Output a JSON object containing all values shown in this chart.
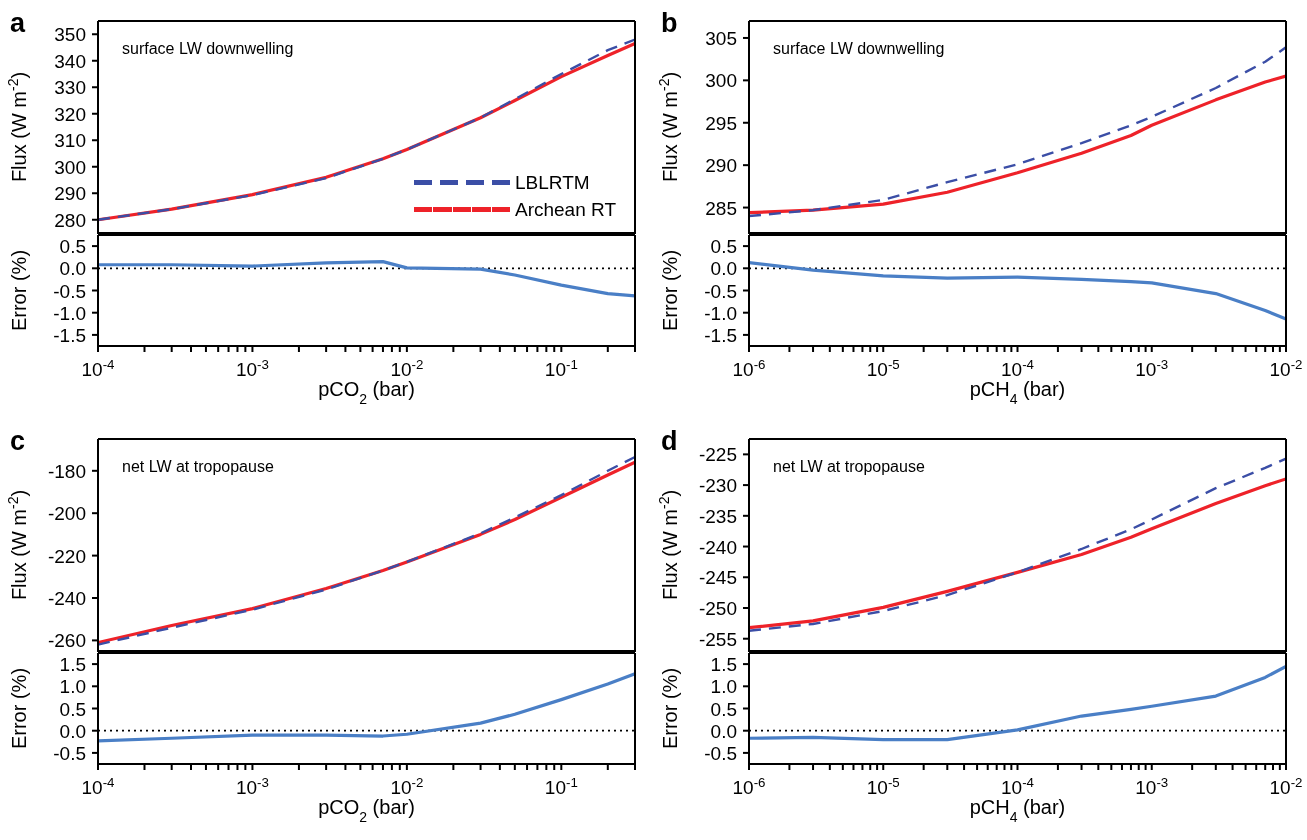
{
  "chart_data": [
    {
      "type": "line",
      "title": "a",
      "annotations": [
        "surface LW downwelling"
      ],
      "ylabel": "Flux (W m$^{-2}$)",
      "legend": "bottom right",
      "tick_labels": "y",
      "x": [
        0.0001,
        0.0003,
        0.001,
        0.003,
        0.007,
        0.01,
        0.03,
        0.05,
        0.1,
        0.2,
        0.3
      ],
      "series": [
        {
          "name": "LBLRTM",
          "color": "#3b4ea6",
          "line_style": "dashed",
          "values": [
            280,
            284,
            289.3,
            295.7,
            303,
            306.5,
            318.5,
            325.5,
            335,
            344,
            348
          ]
        },
        {
          "name": "Archean RT",
          "color": "#ee2229",
          "line_style": "solid",
          "values": [
            280,
            284,
            289.5,
            296,
            303,
            306.5,
            318.5,
            325,
            334,
            342,
            346.5
          ]
        }
      ],
      "xlim": [
        0.0001,
        0.3
      ],
      "xticks": [
        {
          "value": 0.0001,
          "label": null
        },
        {
          "value": 0.0002,
          "label": null
        },
        {
          "value": 0.0003,
          "label": null
        },
        {
          "value": 0.0004,
          "label": null
        },
        {
          "value": 0.0005,
          "label": null
        },
        {
          "value": 0.0006,
          "label": null
        },
        {
          "value": 0.0007,
          "label": null
        },
        {
          "value": 0.0008,
          "label": null
        },
        {
          "value": 0.0009,
          "label": null
        },
        {
          "value": 0.001,
          "label": null
        },
        {
          "value": 0.002,
          "label": null
        },
        {
          "value": 0.003,
          "label": null
        },
        {
          "value": 0.004,
          "label": null
        },
        {
          "value": 0.005,
          "label": null
        },
        {
          "value": 0.006,
          "label": null
        },
        {
          "value": 0.007,
          "label": null
        },
        {
          "value": 0.008,
          "label": null
        },
        {
          "value": 0.009,
          "label": null
        },
        {
          "value": 0.01,
          "label": null
        },
        {
          "value": 0.02,
          "label": null
        },
        {
          "value": 0.03,
          "label": null
        },
        {
          "value": 0.04,
          "label": null
        },
        {
          "value": 0.05,
          "label": null
        },
        {
          "value": 0.06,
          "label": null
        },
        {
          "value": 0.07,
          "label": null
        },
        {
          "value": 0.08,
          "label": null
        },
        {
          "value": 0.09,
          "label": null
        },
        {
          "value": 0.1,
          "label": null
        },
        {
          "value": 0.2,
          "label": null
        },
        {
          "value": 0.3,
          "label": null
        }
      ],
      "log": "x",
      "ylim": [
        275,
        355
      ],
      "yticks": [
        280,
        290,
        300,
        310,
        320,
        330,
        340,
        350
      ]
    },
    {
      "type": "line",
      "ylabel": "Error (%)",
      "xlabel": "pCO$_{2}$ (bar)",
      "x": [
        0.0001,
        0.0003,
        0.001,
        0.003,
        0.007,
        0.01,
        0.03,
        0.05,
        0.1,
        0.2,
        0.3
      ],
      "series": [
        {
          "color": "#4a7fc6",
          "values": [
            0.08,
            0.08,
            0.05,
            0.12,
            0.15,
            0.01,
            -0.02,
            -0.15,
            -0.38,
            -0.57,
            -0.62
          ]
        }
      ],
      "ref_lines": [
        {
          "axis": "y",
          "value": 0,
          "color": "#000000",
          "line_style": "dotted"
        }
      ],
      "xlim": [
        0.0001,
        0.3
      ],
      "xticks": [
        {
          "value": 0.0001,
          "label": "10$^{-4}$"
        },
        {
          "value": 0.0002,
          "label": null
        },
        {
          "value": 0.0003,
          "label": null
        },
        {
          "value": 0.0004,
          "label": null
        },
        {
          "value": 0.0005,
          "label": null
        },
        {
          "value": 0.0006,
          "label": null
        },
        {
          "value": 0.0007,
          "label": null
        },
        {
          "value": 0.0008,
          "label": null
        },
        {
          "value": 0.0009,
          "label": null
        },
        {
          "value": 0.001,
          "label": "10$^{-3}$"
        },
        {
          "value": 0.002,
          "label": null
        },
        {
          "value": 0.003,
          "label": null
        },
        {
          "value": 0.004,
          "label": null
        },
        {
          "value": 0.005,
          "label": null
        },
        {
          "value": 0.006,
          "label": null
        },
        {
          "value": 0.007,
          "label": null
        },
        {
          "value": 0.008,
          "label": null
        },
        {
          "value": 0.009,
          "label": null
        },
        {
          "value": 0.01,
          "label": "10$^{-2}$"
        },
        {
          "value": 0.02,
          "label": null
        },
        {
          "value": 0.03,
          "label": null
        },
        {
          "value": 0.04,
          "label": null
        },
        {
          "value": 0.05,
          "label": null
        },
        {
          "value": 0.06,
          "label": null
        },
        {
          "value": 0.07,
          "label": null
        },
        {
          "value": 0.08,
          "label": null
        },
        {
          "value": 0.09,
          "label": null
        },
        {
          "value": 0.1,
          "label": "10$^{-1}$"
        },
        {
          "value": 0.2,
          "label": null
        },
        {
          "value": 0.3,
          "label": null
        }
      ],
      "log": "x",
      "ylim": [
        -1.75,
        0.75
      ],
      "yticks": [
        {
          "value": -1.5,
          "label": "-1.5"
        },
        {
          "value": -1,
          "label": "-1.0"
        },
        {
          "value": -0.5,
          "label": "-0.5"
        },
        {
          "value": 0,
          "label": "0.0"
        },
        {
          "value": 0.5,
          "label": "0.5"
        }
      ]
    },
    {
      "type": "line",
      "title": "b",
      "annotations": [
        "surface LW downwelling"
      ],
      "ylabel": "Flux (W m$^{-2}$)",
      "tick_labels": "y",
      "x": [
        1e-06,
        3e-06,
        1e-05,
        3e-05,
        0.0001,
        0.0003,
        0.0007,
        0.001,
        0.003,
        0.007,
        0.01
      ],
      "series": [
        {
          "color": "#3b4ea6",
          "line_style": "dashed",
          "values": [
            284,
            284.7,
            285.9,
            288,
            290.1,
            292.6,
            294.7,
            295.7,
            299.1,
            302.2,
            303.9
          ]
        },
        {
          "color": "#ee2229",
          "line_style": "solid",
          "values": [
            284.4,
            284.7,
            285.4,
            286.8,
            289.1,
            291.4,
            293.5,
            294.7,
            297.7,
            299.8,
            300.5
          ]
        }
      ],
      "xlim": [
        1e-06,
        0.01
      ],
      "xticks": [
        {
          "value": 1e-06,
          "label": null
        },
        {
          "value": 2e-06,
          "label": null
        },
        {
          "value": 3e-06,
          "label": null
        },
        {
          "value": 4e-06,
          "label": null
        },
        {
          "value": 5e-06,
          "label": null
        },
        {
          "value": 6e-06,
          "label": null
        },
        {
          "value": 7e-06,
          "label": null
        },
        {
          "value": 8e-06,
          "label": null
        },
        {
          "value": 9e-06,
          "label": null
        },
        {
          "value": 1e-05,
          "label": null
        },
        {
          "value": 2e-05,
          "label": null
        },
        {
          "value": 3e-05,
          "label": null
        },
        {
          "value": 4e-05,
          "label": null
        },
        {
          "value": 5e-05,
          "label": null
        },
        {
          "value": 6e-05,
          "label": null
        },
        {
          "value": 7e-05,
          "label": null
        },
        {
          "value": 8e-05,
          "label": null
        },
        {
          "value": 9e-05,
          "label": null
        },
        {
          "value": 0.0001,
          "label": null
        },
        {
          "value": 0.0002,
          "label": null
        },
        {
          "value": 0.0003,
          "label": null
        },
        {
          "value": 0.0004,
          "label": null
        },
        {
          "value": 0.0005,
          "label": null
        },
        {
          "value": 0.0006,
          "label": null
        },
        {
          "value": 0.0007,
          "label": null
        },
        {
          "value": 0.0008,
          "label": null
        },
        {
          "value": 0.0009,
          "label": null
        },
        {
          "value": 0.001,
          "label": null
        },
        {
          "value": 0.002,
          "label": null
        },
        {
          "value": 0.003,
          "label": null
        },
        {
          "value": 0.004,
          "label": null
        },
        {
          "value": 0.005,
          "label": null
        },
        {
          "value": 0.006,
          "label": null
        },
        {
          "value": 0.007,
          "label": null
        },
        {
          "value": 0.008,
          "label": null
        },
        {
          "value": 0.009,
          "label": null
        },
        {
          "value": 0.01,
          "label": null
        }
      ],
      "log": "x",
      "ylim": [
        282,
        307
      ],
      "yticks": [
        285,
        290,
        295,
        300,
        305
      ]
    },
    {
      "type": "line",
      "ylabel": "Error (%)",
      "xlabel": "pCH$_{4}$ (bar)",
      "x": [
        1e-06,
        3e-06,
        1e-05,
        3e-05,
        0.0001,
        0.0003,
        0.0007,
        0.001,
        0.003,
        0.007,
        0.01
      ],
      "series": [
        {
          "color": "#4a7fc6",
          "values": [
            0.13,
            -0.04,
            -0.17,
            -0.22,
            -0.2,
            -0.25,
            -0.3,
            -0.33,
            -0.57,
            -0.95,
            -1.14
          ]
        }
      ],
      "ref_lines": [
        {
          "axis": "y",
          "value": 0,
          "color": "#000000",
          "line_style": "dotted"
        }
      ],
      "xlim": [
        1e-06,
        0.01
      ],
      "xticks": [
        {
          "value": 1e-06,
          "label": "10$^{-6}$"
        },
        {
          "value": 2e-06,
          "label": null
        },
        {
          "value": 3e-06,
          "label": null
        },
        {
          "value": 4e-06,
          "label": null
        },
        {
          "value": 5e-06,
          "label": null
        },
        {
          "value": 6e-06,
          "label": null
        },
        {
          "value": 7e-06,
          "label": null
        },
        {
          "value": 8e-06,
          "label": null
        },
        {
          "value": 9e-06,
          "label": null
        },
        {
          "value": 1e-05,
          "label": "10$^{-5}$"
        },
        {
          "value": 2e-05,
          "label": null
        },
        {
          "value": 3e-05,
          "label": null
        },
        {
          "value": 4e-05,
          "label": null
        },
        {
          "value": 5e-05,
          "label": null
        },
        {
          "value": 6e-05,
          "label": null
        },
        {
          "value": 7e-05,
          "label": null
        },
        {
          "value": 8e-05,
          "label": null
        },
        {
          "value": 9e-05,
          "label": null
        },
        {
          "value": 0.0001,
          "label": "10$^{-4}$"
        },
        {
          "value": 0.0002,
          "label": null
        },
        {
          "value": 0.0003,
          "label": null
        },
        {
          "value": 0.0004,
          "label": null
        },
        {
          "value": 0.0005,
          "label": null
        },
        {
          "value": 0.0006,
          "label": null
        },
        {
          "value": 0.0007,
          "label": null
        },
        {
          "value": 0.0008,
          "label": null
        },
        {
          "value": 0.0009,
          "label": null
        },
        {
          "value": 0.001,
          "label": "10$^{-3}$"
        },
        {
          "value": 0.002,
          "label": null
        },
        {
          "value": 0.003,
          "label": null
        },
        {
          "value": 0.004,
          "label": null
        },
        {
          "value": 0.005,
          "label": null
        },
        {
          "value": 0.006,
          "label": null
        },
        {
          "value": 0.007,
          "label": null
        },
        {
          "value": 0.008,
          "label": null
        },
        {
          "value": 0.009,
          "label": null
        },
        {
          "value": 0.01,
          "label": "10$^{-2}$"
        }
      ],
      "log": "x",
      "ylim": [
        -1.75,
        0.75
      ],
      "yticks": [
        {
          "value": -1.5,
          "label": "-1.5"
        },
        {
          "value": -1,
          "label": "-1.0"
        },
        {
          "value": -0.5,
          "label": "-0.5"
        },
        {
          "value": 0,
          "label": "0.0"
        },
        {
          "value": 0.5,
          "label": "0.5"
        }
      ]
    },
    {
      "type": "line",
      "title": "c",
      "annotations": [
        "net LW at tropopause"
      ],
      "ylabel": "Flux (W m$^{-2}$)",
      "tick_labels": "y",
      "x": [
        0.0001,
        0.0003,
        0.001,
        0.003,
        0.007,
        0.01,
        0.03,
        0.05,
        0.1,
        0.2,
        0.3
      ],
      "series": [
        {
          "color": "#3b4ea6",
          "line_style": "dashed",
          "values": [
            -262,
            -254,
            -245.5,
            -236,
            -227,
            -223,
            -209.5,
            -202,
            -191.5,
            -180,
            -173.5
          ]
        },
        {
          "color": "#ee2229",
          "line_style": "solid",
          "values": [
            -261,
            -253,
            -245,
            -235.5,
            -227,
            -223,
            -210,
            -203,
            -192.5,
            -182,
            -176
          ]
        }
      ],
      "xlim": [
        0.0001,
        0.3
      ],
      "xticks": [
        {
          "value": 0.0001,
          "label": null
        },
        {
          "value": 0.0002,
          "label": null
        },
        {
          "value": 0.0003,
          "label": null
        },
        {
          "value": 0.0004,
          "label": null
        },
        {
          "value": 0.0005,
          "label": null
        },
        {
          "value": 0.0006,
          "label": null
        },
        {
          "value": 0.0007,
          "label": null
        },
        {
          "value": 0.0008,
          "label": null
        },
        {
          "value": 0.0009,
          "label": null
        },
        {
          "value": 0.001,
          "label": null
        },
        {
          "value": 0.002,
          "label": null
        },
        {
          "value": 0.003,
          "label": null
        },
        {
          "value": 0.004,
          "label": null
        },
        {
          "value": 0.005,
          "label": null
        },
        {
          "value": 0.006,
          "label": null
        },
        {
          "value": 0.007,
          "label": null
        },
        {
          "value": 0.008,
          "label": null
        },
        {
          "value": 0.009,
          "label": null
        },
        {
          "value": 0.01,
          "label": null
        },
        {
          "value": 0.02,
          "label": null
        },
        {
          "value": 0.03,
          "label": null
        },
        {
          "value": 0.04,
          "label": null
        },
        {
          "value": 0.05,
          "label": null
        },
        {
          "value": 0.06,
          "label": null
        },
        {
          "value": 0.07,
          "label": null
        },
        {
          "value": 0.08,
          "label": null
        },
        {
          "value": 0.09,
          "label": null
        },
        {
          "value": 0.1,
          "label": null
        },
        {
          "value": 0.2,
          "label": null
        },
        {
          "value": 0.3,
          "label": null
        }
      ],
      "log": "x",
      "ylim": [
        -265,
        -165
      ],
      "yticks": [
        -260,
        -240,
        -220,
        -200,
        -180
      ]
    },
    {
      "type": "line",
      "ylabel": "Error (%)",
      "xlabel": "pCO$_{2}$ (bar)",
      "x": [
        0.0001,
        0.0003,
        0.001,
        0.003,
        0.007,
        0.01,
        0.03,
        0.05,
        0.1,
        0.2,
        0.3
      ],
      "series": [
        {
          "color": "#4a7fc6",
          "values": [
            -0.23,
            -0.17,
            -0.1,
            -0.1,
            -0.12,
            -0.08,
            0.17,
            0.37,
            0.7,
            1.05,
            1.28
          ]
        }
      ],
      "ref_lines": [
        {
          "axis": "y",
          "value": 0,
          "color": "#000000",
          "line_style": "dotted"
        }
      ],
      "xlim": [
        0.0001,
        0.3
      ],
      "xticks": [
        {
          "value": 0.0001,
          "label": "10$^{-4}$"
        },
        {
          "value": 0.0002,
          "label": null
        },
        {
          "value": 0.0003,
          "label": null
        },
        {
          "value": 0.0004,
          "label": null
        },
        {
          "value": 0.0005,
          "label": null
        },
        {
          "value": 0.0006,
          "label": null
        },
        {
          "value": 0.0007,
          "label": null
        },
        {
          "value": 0.0008,
          "label": null
        },
        {
          "value": 0.0009,
          "label": null
        },
        {
          "value": 0.001,
          "label": "10$^{-3}$"
        },
        {
          "value": 0.002,
          "label": null
        },
        {
          "value": 0.003,
          "label": null
        },
        {
          "value": 0.004,
          "label": null
        },
        {
          "value": 0.005,
          "label": null
        },
        {
          "value": 0.006,
          "label": null
        },
        {
          "value": 0.007,
          "label": null
        },
        {
          "value": 0.008,
          "label": null
        },
        {
          "value": 0.009,
          "label": null
        },
        {
          "value": 0.01,
          "label": "10$^{-2}$"
        },
        {
          "value": 0.02,
          "label": null
        },
        {
          "value": 0.03,
          "label": null
        },
        {
          "value": 0.04,
          "label": null
        },
        {
          "value": 0.05,
          "label": null
        },
        {
          "value": 0.06,
          "label": null
        },
        {
          "value": 0.07,
          "label": null
        },
        {
          "value": 0.08,
          "label": null
        },
        {
          "value": 0.09,
          "label": null
        },
        {
          "value": 0.1,
          "label": "10$^{-1}$"
        },
        {
          "value": 0.2,
          "label": null
        },
        {
          "value": 0.3,
          "label": null
        }
      ],
      "log": "x",
      "ylim": [
        -0.75,
        1.75
      ],
      "yticks": [
        {
          "value": -0.5,
          "label": "-0.5"
        },
        {
          "value": 0,
          "label": "0.0"
        },
        {
          "value": 0.5,
          "label": "0.5"
        },
        {
          "value": 1,
          "label": "1.0"
        },
        {
          "value": 1.5,
          "label": "1.5"
        }
      ]
    },
    {
      "type": "line",
      "title": "d",
      "annotations": [
        "net LW at tropopause"
      ],
      "ylabel": "Flux (W m$^{-2}$)",
      "tick_labels": "y",
      "x": [
        1e-06,
        3e-06,
        1e-05,
        3e-05,
        0.0001,
        0.0003,
        0.0007,
        0.001,
        0.003,
        0.007,
        0.01
      ],
      "series": [
        {
          "color": "#3b4ea6",
          "line_style": "dashed",
          "values": [
            -253.7,
            -252.6,
            -250.5,
            -247.9,
            -244.2,
            -240.4,
            -237.2,
            -235.6,
            -230.5,
            -227.2,
            -225.7
          ]
        },
        {
          "color": "#ee2229",
          "line_style": "solid",
          "values": [
            -253.2,
            -252.1,
            -249.9,
            -247.3,
            -244.2,
            -241.3,
            -238.5,
            -237.1,
            -233,
            -230.1,
            -229
          ]
        }
      ],
      "xlim": [
        1e-06,
        0.01
      ],
      "xticks": [
        {
          "value": 1e-06,
          "label": null
        },
        {
          "value": 2e-06,
          "label": null
        },
        {
          "value": 3e-06,
          "label": null
        },
        {
          "value": 4e-06,
          "label": null
        },
        {
          "value": 5e-06,
          "label": null
        },
        {
          "value": 6e-06,
          "label": null
        },
        {
          "value": 7e-06,
          "label": null
        },
        {
          "value": 8e-06,
          "label": null
        },
        {
          "value": 9e-06,
          "label": null
        },
        {
          "value": 1e-05,
          "label": null
        },
        {
          "value": 2e-05,
          "label": null
        },
        {
          "value": 3e-05,
          "label": null
        },
        {
          "value": 4e-05,
          "label": null
        },
        {
          "value": 5e-05,
          "label": null
        },
        {
          "value": 6e-05,
          "label": null
        },
        {
          "value": 7e-05,
          "label": null
        },
        {
          "value": 8e-05,
          "label": null
        },
        {
          "value": 9e-05,
          "label": null
        },
        {
          "value": 0.0001,
          "label": null
        },
        {
          "value": 0.0002,
          "label": null
        },
        {
          "value": 0.0003,
          "label": null
        },
        {
          "value": 0.0004,
          "label": null
        },
        {
          "value": 0.0005,
          "label": null
        },
        {
          "value": 0.0006,
          "label": null
        },
        {
          "value": 0.0007,
          "label": null
        },
        {
          "value": 0.0008,
          "label": null
        },
        {
          "value": 0.0009,
          "label": null
        },
        {
          "value": 0.001,
          "label": null
        },
        {
          "value": 0.002,
          "label": null
        },
        {
          "value": 0.003,
          "label": null
        },
        {
          "value": 0.004,
          "label": null
        },
        {
          "value": 0.005,
          "label": null
        },
        {
          "value": 0.006,
          "label": null
        },
        {
          "value": 0.007,
          "label": null
        },
        {
          "value": 0.008,
          "label": null
        },
        {
          "value": 0.009,
          "label": null
        },
        {
          "value": 0.01,
          "label": null
        }
      ],
      "log": "x",
      "ylim": [
        -257,
        -222.5
      ],
      "yticks": [
        -255,
        -250,
        -245,
        -240,
        -235,
        -230,
        -225
      ]
    },
    {
      "type": "line",
      "ylabel": "Error (%)",
      "xlabel": "pCH$_{4}$ (bar)",
      "x": [
        1e-06,
        3e-06,
        1e-05,
        3e-05,
        0.0001,
        0.0003,
        0.0007,
        0.001,
        0.003,
        0.007,
        0.01
      ],
      "series": [
        {
          "color": "#4a7fc6",
          "values": [
            -0.17,
            -0.15,
            -0.2,
            -0.2,
            0.02,
            0.33,
            0.48,
            0.55,
            0.78,
            1.2,
            1.45
          ]
        }
      ],
      "ref_lines": [
        {
          "axis": "y",
          "value": 0,
          "color": "#000000",
          "line_style": "dotted"
        }
      ],
      "xlim": [
        1e-06,
        0.01
      ],
      "xticks": [
        {
          "value": 1e-06,
          "label": "10$^{-6}$"
        },
        {
          "value": 2e-06,
          "label": null
        },
        {
          "value": 3e-06,
          "label": null
        },
        {
          "value": 4e-06,
          "label": null
        },
        {
          "value": 5e-06,
          "label": null
        },
        {
          "value": 6e-06,
          "label": null
        },
        {
          "value": 7e-06,
          "label": null
        },
        {
          "value": 8e-06,
          "label": null
        },
        {
          "value": 9e-06,
          "label": null
        },
        {
          "value": 1e-05,
          "label": "10$^{-5}$"
        },
        {
          "value": 2e-05,
          "label": null
        },
        {
          "value": 3e-05,
          "label": null
        },
        {
          "value": 4e-05,
          "label": null
        },
        {
          "value": 5e-05,
          "label": null
        },
        {
          "value": 6e-05,
          "label": null
        },
        {
          "value": 7e-05,
          "label": null
        },
        {
          "value": 8e-05,
          "label": null
        },
        {
          "value": 9e-05,
          "label": null
        },
        {
          "value": 0.0001,
          "label": "10$^{-4}$"
        },
        {
          "value": 0.0002,
          "label": null
        },
        {
          "value": 0.0003,
          "label": null
        },
        {
          "value": 0.0004,
          "label": null
        },
        {
          "value": 0.0005,
          "label": null
        },
        {
          "value": 0.0006,
          "label": null
        },
        {
          "value": 0.0007,
          "label": null
        },
        {
          "value": 0.0008,
          "label": null
        },
        {
          "value": 0.0009,
          "label": null
        },
        {
          "value": 0.001,
          "label": "10$^{-3}$"
        },
        {
          "value": 0.002,
          "label": null
        },
        {
          "value": 0.003,
          "label": null
        },
        {
          "value": 0.004,
          "label": null
        },
        {
          "value": 0.005,
          "label": null
        },
        {
          "value": 0.006,
          "label": null
        },
        {
          "value": 0.007,
          "label": null
        },
        {
          "value": 0.008,
          "label": null
        },
        {
          "value": 0.009,
          "label": null
        },
        {
          "value": 0.01,
          "label": "10$^{-2}$"
        }
      ],
      "log": "x",
      "ylim": [
        -0.75,
        1.75
      ],
      "yticks": [
        {
          "value": -0.5,
          "label": "-0.5"
        },
        {
          "value": 0,
          "label": "0.0"
        },
        {
          "value": 0.5,
          "label": "0.5"
        },
        {
          "value": 1,
          "label": "1.0"
        },
        {
          "value": 1.5,
          "label": "1.5"
        }
      ]
    }
  ]
}
